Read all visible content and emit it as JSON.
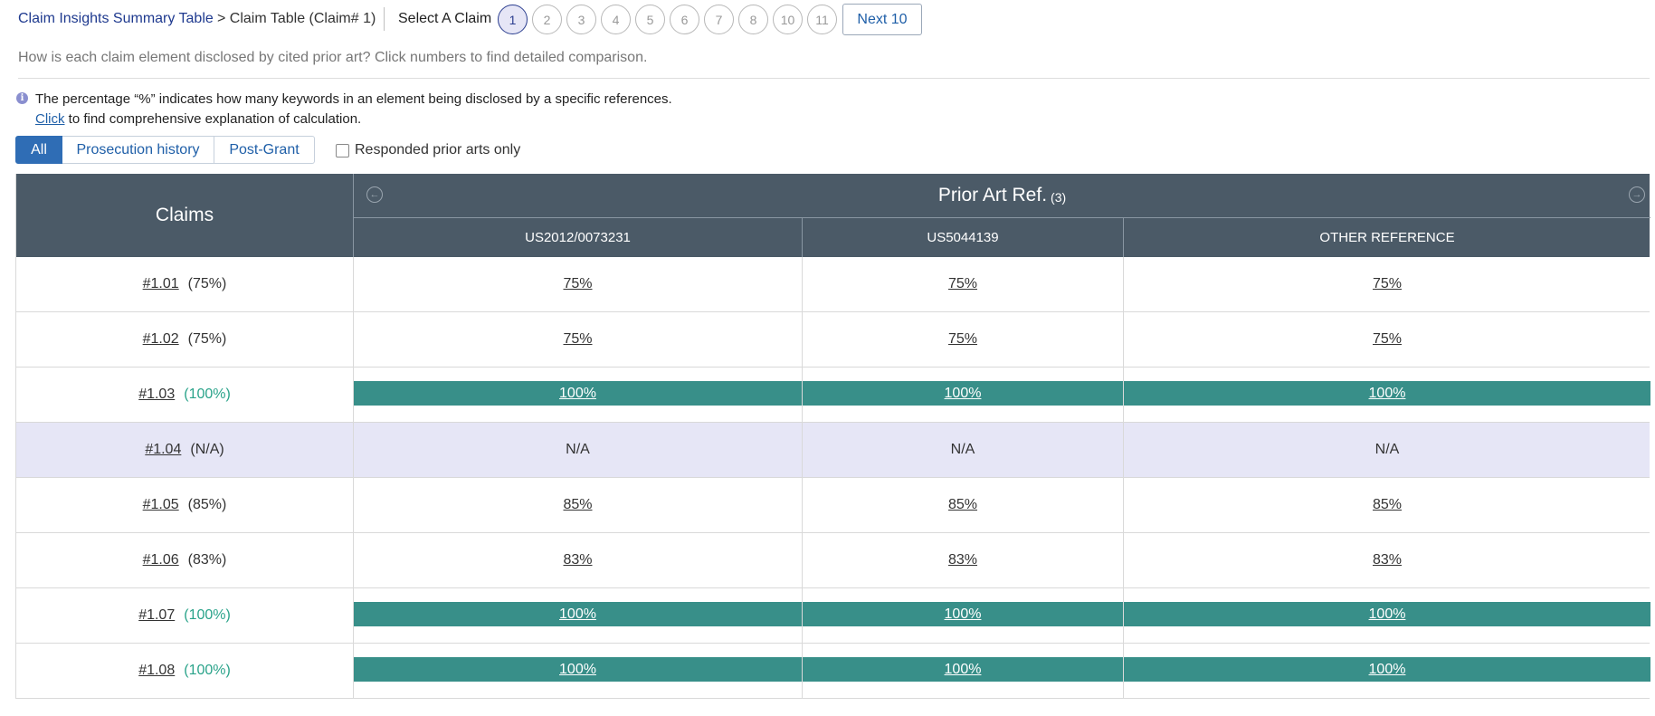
{
  "header": {
    "breadcrumb_link": "Claim Insights Summary Table",
    "breadcrumb_current": "> Claim Table (Claim# 1)",
    "select_label": "Select A Claim",
    "claim_numbers": [
      "1",
      "2",
      "3",
      "4",
      "5",
      "6",
      "7",
      "8",
      "10",
      "11"
    ],
    "active_claim": "1",
    "next_label": "Next 10"
  },
  "question": "How is each claim element disclosed by cited prior art? Click numbers to find detailed comparison.",
  "info": {
    "icon": "info-icon",
    "text": "The percentage “%” indicates how many keywords in an element being disclosed by a specific references.",
    "link_text": "Click",
    "link_suffix": " to find comprehensive explanation of calculation."
  },
  "filters": {
    "tabs": [
      "All",
      "Prosecution history",
      "Post-Grant"
    ],
    "active_tab": "All",
    "checkbox_label": "Responded prior arts only",
    "checkbox_checked": false
  },
  "table": {
    "claims_header": "Claims",
    "prior_art_title": "Prior Art Ref.",
    "prior_art_count": "(3)",
    "references": [
      "US2012/0073231",
      "US5044139",
      "OTHER REFERENCE"
    ],
    "rows": [
      {
        "claim": "#1.01",
        "pct": "(75%)",
        "full": false,
        "na": false,
        "values": [
          "75%",
          "75%",
          "75%"
        ]
      },
      {
        "claim": "#1.02",
        "pct": "(75%)",
        "full": false,
        "na": false,
        "values": [
          "75%",
          "75%",
          "75%"
        ]
      },
      {
        "claim": "#1.03",
        "pct": "(100%)",
        "full": true,
        "na": false,
        "values": [
          "100%",
          "100%",
          "100%"
        ]
      },
      {
        "claim": "#1.04",
        "pct": "(N/A)",
        "full": false,
        "na": true,
        "values": [
          "N/A",
          "N/A",
          "N/A"
        ]
      },
      {
        "claim": "#1.05",
        "pct": "(85%)",
        "full": false,
        "na": false,
        "values": [
          "85%",
          "85%",
          "85%"
        ]
      },
      {
        "claim": "#1.06",
        "pct": "(83%)",
        "full": false,
        "na": false,
        "values": [
          "83%",
          "83%",
          "83%"
        ]
      },
      {
        "claim": "#1.07",
        "pct": "(100%)",
        "full": true,
        "na": false,
        "values": [
          "100%",
          "100%",
          "100%"
        ]
      },
      {
        "claim": "#1.08",
        "pct": "(100%)",
        "full": true,
        "na": false,
        "values": [
          "100%",
          "100%",
          "100%"
        ]
      }
    ]
  },
  "colors": {
    "full_bar": "#388f89",
    "full_text": "#2aa38a",
    "header_bg": "#4b5a67",
    "na_row_bg": "#e6e6f6",
    "active_tab": "#2f6db5"
  }
}
